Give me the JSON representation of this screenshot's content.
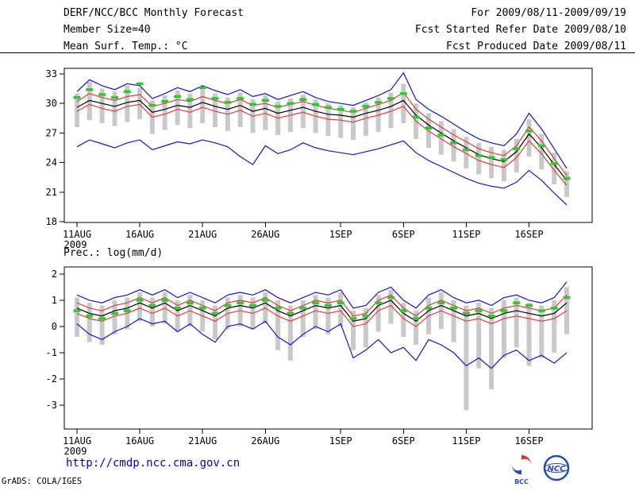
{
  "header": {
    "title": "DERF/NCC/BCC Monthly Forecast",
    "member_size": "Member Size=40",
    "for_range": "For 2009/08/11-2009/09/19",
    "fcst_started": "Fcst Started Refer Date 2009/08/10",
    "fcst_produced": "Fcst Produced Date 2009/08/11"
  },
  "footer": {
    "url": "http://cmdp.ncc.cma.gov.cn",
    "grads_credit": "GrADS: COLA/IGES",
    "logos": [
      {
        "name": "bcc-logo",
        "label": "BCC"
      },
      {
        "name": "ncc-logo",
        "label": "NCC"
      }
    ]
  },
  "colors": {
    "blue": "#1414c8",
    "red": "#e03c3c",
    "green": "#30c830",
    "gray": "#c9c9c9",
    "black": "#000000",
    "url_blue": "#0000cc",
    "logo_blue": "#2b4bb4",
    "logo_red": "#d43a3a"
  },
  "chart_data": [
    {
      "type": "line",
      "title": "Mean Surf. Temp.: °C",
      "ylabel": "°C",
      "x_dates": [
        "11AUG",
        "12AUG",
        "13AUG",
        "14AUG",
        "15AUG",
        "16AUG",
        "17AUG",
        "18AUG",
        "19AUG",
        "20AUG",
        "21AUG",
        "22AUG",
        "23AUG",
        "24AUG",
        "25AUG",
        "26AUG",
        "27AUG",
        "28AUG",
        "29AUG",
        "30AUG",
        "31AUG",
        "1SEP",
        "2SEP",
        "3SEP",
        "4SEP",
        "5SEP",
        "6SEP",
        "7SEP",
        "8SEP",
        "9SEP",
        "10SEP",
        "11SEP",
        "12SEP",
        "13SEP",
        "14SEP",
        "15SEP",
        "16SEP",
        "17SEP",
        "18SEP",
        "19SEP"
      ],
      "x_tick_indices": [
        0,
        5,
        10,
        15,
        21,
        26,
        31,
        36
      ],
      "x_tick_labels": [
        "11AUG",
        "16AUG",
        "21AUG",
        "26AUG",
        "1SEP",
        "6SEP",
        "11SEP",
        "16SEP"
      ],
      "year_label": "2009",
      "y_ticks": [
        18,
        21,
        24,
        27,
        30,
        33
      ],
      "ylim": [
        17.92,
        33.56
      ],
      "legend_position": "none",
      "grid": false,
      "series": [
        {
          "name": "ensemble-max",
          "color": "blue",
          "style": "line",
          "values": [
            31.2,
            32.4,
            31.8,
            31.4,
            32.0,
            31.8,
            30.5,
            31.0,
            31.6,
            31.2,
            31.8,
            31.3,
            30.9,
            31.4,
            30.7,
            31.0,
            30.4,
            30.8,
            31.2,
            30.6,
            30.2,
            30.0,
            29.8,
            30.3,
            30.8,
            31.4,
            33.1,
            30.4,
            29.4,
            28.7,
            27.9,
            27.1,
            26.4,
            26.0,
            25.7,
            26.9,
            29.0,
            27.4,
            25.4,
            23.4
          ]
        },
        {
          "name": "upper-quartile",
          "color": "red",
          "style": "line",
          "values": [
            30.2,
            31.0,
            30.6,
            30.3,
            30.7,
            30.9,
            29.7,
            30.0,
            30.4,
            30.2,
            30.7,
            30.3,
            30.0,
            30.4,
            29.8,
            30.0,
            29.6,
            29.9,
            30.2,
            29.8,
            29.5,
            29.3,
            29.1,
            29.5,
            29.9,
            30.3,
            31.1,
            29.4,
            28.4,
            27.6,
            26.8,
            26.1,
            25.4,
            25.0,
            24.7,
            25.7,
            27.6,
            26.2,
            24.4,
            22.7
          ]
        },
        {
          "name": "ensemble-mean",
          "color": "black",
          "style": "line",
          "values": [
            29.6,
            30.3,
            30.0,
            29.7,
            30.1,
            30.3,
            29.1,
            29.4,
            29.8,
            29.6,
            30.1,
            29.7,
            29.4,
            29.8,
            29.2,
            29.5,
            29.0,
            29.3,
            29.6,
            29.2,
            28.9,
            28.8,
            28.6,
            29.0,
            29.3,
            29.7,
            30.3,
            28.8,
            27.8,
            27.0,
            26.2,
            25.5,
            24.8,
            24.4,
            24.1,
            25.1,
            26.9,
            25.5,
            23.8,
            22.2
          ]
        },
        {
          "name": "lower-quartile",
          "color": "red",
          "style": "line",
          "values": [
            29.2,
            29.9,
            29.5,
            29.2,
            29.7,
            29.9,
            28.6,
            28.9,
            29.4,
            29.1,
            29.6,
            29.2,
            28.9,
            29.3,
            28.7,
            29.0,
            28.5,
            28.8,
            29.1,
            28.7,
            28.4,
            28.3,
            28.1,
            28.5,
            28.8,
            29.2,
            29.7,
            28.2,
            27.2,
            26.4,
            25.6,
            24.9,
            24.2,
            23.8,
            23.5,
            24.5,
            26.2,
            24.9,
            23.2,
            21.7
          ]
        },
        {
          "name": "ensemble-min",
          "color": "blue",
          "style": "line",
          "values": [
            25.6,
            26.3,
            25.9,
            25.5,
            26.0,
            26.3,
            25.3,
            25.7,
            26.1,
            25.9,
            26.3,
            26.0,
            25.6,
            24.6,
            23.8,
            25.7,
            24.9,
            25.3,
            26.0,
            25.5,
            25.2,
            25.0,
            24.8,
            25.1,
            25.4,
            25.8,
            26.2,
            25.0,
            24.2,
            23.6,
            23.0,
            22.4,
            21.9,
            21.6,
            21.4,
            22.0,
            23.2,
            22.2,
            20.9,
            19.7
          ]
        },
        {
          "name": "control-daily",
          "color": "green",
          "style": "dashes",
          "values": [
            30.6,
            31.4,
            30.9,
            30.6,
            31.2,
            32.0,
            29.8,
            30.2,
            30.7,
            30.4,
            31.6,
            30.5,
            30.1,
            30.5,
            29.9,
            30.3,
            29.7,
            30.0,
            30.4,
            29.9,
            29.6,
            29.4,
            29.2,
            29.7,
            30.1,
            30.5,
            31.0,
            28.6,
            27.5,
            26.8,
            26.0,
            25.3,
            24.7,
            24.5,
            24.3,
            25.4,
            27.2,
            25.7,
            23.9,
            22.4
          ]
        }
      ],
      "bars": {
        "name": "ensemble-spread",
        "color": "gray",
        "top": [
          31.0,
          32.2,
          31.5,
          31.2,
          31.8,
          31.6,
          30.3,
          30.8,
          31.3,
          31.0,
          31.5,
          31.0,
          30.6,
          31.1,
          30.4,
          30.8,
          30.2,
          30.5,
          30.9,
          30.4,
          30.0,
          29.8,
          29.6,
          30.1,
          30.6,
          31.1,
          32.0,
          30.0,
          29.0,
          28.2,
          27.4,
          26.6,
          26.0,
          25.6,
          25.3,
          26.4,
          28.4,
          26.9,
          25.0,
          23.1
        ],
        "bottom": [
          27.6,
          28.3,
          28.0,
          27.7,
          28.1,
          28.4,
          26.9,
          27.3,
          27.8,
          27.5,
          28.0,
          27.6,
          27.2,
          27.6,
          27.0,
          27.3,
          26.8,
          27.1,
          27.5,
          27.0,
          26.7,
          26.5,
          26.3,
          26.7,
          27.1,
          27.5,
          28.0,
          26.4,
          25.5,
          24.8,
          24.1,
          23.4,
          22.8,
          22.4,
          22.1,
          23.0,
          24.6,
          23.3,
          21.8,
          20.5
        ]
      }
    },
    {
      "type": "line",
      "title": "Prec.: log(mm/d)",
      "ylabel": "log(mm/d)",
      "x_dates": [
        "11AUG",
        "12AUG",
        "13AUG",
        "14AUG",
        "15AUG",
        "16AUG",
        "17AUG",
        "18AUG",
        "19AUG",
        "20AUG",
        "21AUG",
        "22AUG",
        "23AUG",
        "24AUG",
        "25AUG",
        "26AUG",
        "27AUG",
        "28AUG",
        "29AUG",
        "30AUG",
        "31AUG",
        "1SEP",
        "2SEP",
        "3SEP",
        "4SEP",
        "5SEP",
        "6SEP",
        "7SEP",
        "8SEP",
        "9SEP",
        "10SEP",
        "11SEP",
        "12SEP",
        "13SEP",
        "14SEP",
        "15SEP",
        "16SEP",
        "17SEP",
        "18SEP",
        "19SEP"
      ],
      "x_tick_indices": [
        0,
        5,
        10,
        15,
        21,
        26,
        31,
        36
      ],
      "x_tick_labels": [
        "11AUG",
        "16AUG",
        "21AUG",
        "26AUG",
        "1SEP",
        "6SEP",
        "11SEP",
        "16SEP"
      ],
      "year_label": "2009",
      "y_ticks": [
        -3,
        -2,
        -1,
        0,
        1,
        2
      ],
      "ylim": [
        -3.91,
        2.27
      ],
      "legend_position": "none",
      "grid": false,
      "series": [
        {
          "name": "ensemble-max",
          "color": "blue",
          "style": "line",
          "values": [
            1.2,
            1.0,
            0.9,
            1.1,
            1.2,
            1.4,
            1.2,
            1.4,
            1.1,
            1.3,
            1.1,
            0.9,
            1.2,
            1.3,
            1.2,
            1.4,
            1.1,
            0.9,
            1.1,
            1.3,
            1.2,
            1.4,
            0.7,
            0.8,
            1.3,
            1.5,
            1.0,
            0.7,
            1.2,
            1.4,
            1.1,
            0.9,
            1.0,
            0.8,
            1.1,
            1.2,
            1.0,
            0.9,
            1.1,
            1.7
          ]
        },
        {
          "name": "upper-quartile",
          "color": "red",
          "style": "line",
          "values": [
            0.9,
            0.7,
            0.6,
            0.8,
            0.9,
            1.1,
            0.9,
            1.1,
            0.8,
            1.0,
            0.8,
            0.6,
            0.9,
            1.0,
            0.9,
            1.1,
            0.8,
            0.6,
            0.8,
            1.0,
            0.9,
            1.0,
            0.4,
            0.5,
            1.0,
            1.2,
            0.7,
            0.4,
            0.8,
            1.0,
            0.8,
            0.6,
            0.7,
            0.5,
            0.7,
            0.8,
            0.7,
            0.6,
            0.7,
            1.2
          ]
        },
        {
          "name": "ensemble-mean",
          "color": "black",
          "style": "line",
          "values": [
            0.7,
            0.5,
            0.4,
            0.6,
            0.7,
            0.9,
            0.7,
            0.9,
            0.6,
            0.8,
            0.6,
            0.4,
            0.7,
            0.8,
            0.7,
            0.9,
            0.6,
            0.4,
            0.6,
            0.8,
            0.7,
            0.8,
            0.2,
            0.3,
            0.8,
            1.0,
            0.5,
            0.2,
            0.6,
            0.8,
            0.6,
            0.4,
            0.5,
            0.3,
            0.5,
            0.6,
            0.5,
            0.4,
            0.5,
            0.9
          ]
        },
        {
          "name": "lower-quartile",
          "color": "red",
          "style": "line",
          "values": [
            0.5,
            0.3,
            0.2,
            0.4,
            0.5,
            0.7,
            0.5,
            0.7,
            0.4,
            0.6,
            0.4,
            0.2,
            0.5,
            0.6,
            0.5,
            0.7,
            0.4,
            0.2,
            0.4,
            0.6,
            0.5,
            0.6,
            0.0,
            0.1,
            0.6,
            0.8,
            0.3,
            0.0,
            0.4,
            0.6,
            0.4,
            0.2,
            0.3,
            0.1,
            0.3,
            0.4,
            0.3,
            0.2,
            0.3,
            0.6
          ]
        },
        {
          "name": "ensemble-min",
          "color": "blue",
          "style": "line",
          "values": [
            0.1,
            -0.3,
            -0.5,
            -0.2,
            0.0,
            0.3,
            0.1,
            0.2,
            -0.2,
            0.1,
            -0.3,
            -0.6,
            0.0,
            0.1,
            -0.1,
            0.2,
            -0.4,
            -0.7,
            -0.3,
            0.0,
            -0.2,
            0.1,
            -1.2,
            -0.9,
            -0.5,
            -1.0,
            -0.8,
            -1.3,
            -0.5,
            -0.7,
            -1.0,
            -1.5,
            -1.2,
            -1.6,
            -1.1,
            -0.9,
            -1.3,
            -1.1,
            -1.4,
            -1.0
          ]
        },
        {
          "name": "control-daily",
          "color": "green",
          "style": "dashes",
          "values": [
            0.6,
            0.4,
            0.3,
            0.5,
            0.6,
            1.0,
            0.8,
            1.0,
            0.7,
            0.9,
            0.7,
            0.5,
            0.8,
            0.9,
            0.8,
            1.0,
            0.7,
            0.5,
            0.7,
            0.9,
            0.8,
            0.9,
            0.3,
            0.4,
            0.9,
            1.1,
            0.6,
            0.3,
            0.7,
            0.9,
            0.7,
            0.5,
            0.6,
            0.4,
            0.6,
            0.9,
            0.8,
            0.6,
            0.7,
            1.1
          ]
        }
      ],
      "bars": {
        "name": "ensemble-spread",
        "color": "gray",
        "top": [
          1.1,
          0.9,
          0.8,
          1.0,
          1.1,
          1.3,
          1.1,
          1.3,
          1.0,
          1.2,
          1.0,
          0.8,
          1.1,
          1.2,
          1.1,
          1.3,
          1.0,
          0.8,
          1.0,
          1.2,
          1.1,
          1.3,
          0.6,
          0.7,
          1.2,
          1.4,
          0.9,
          0.6,
          1.1,
          1.3,
          1.0,
          0.8,
          0.9,
          0.7,
          1.0,
          1.1,
          0.9,
          0.8,
          1.0,
          1.5
        ],
        "bottom": [
          -0.4,
          -0.6,
          -0.7,
          -0.3,
          -0.1,
          0.2,
          0.0,
          0.1,
          -0.2,
          0.0,
          -0.2,
          -0.5,
          -0.1,
          0.0,
          -0.1,
          0.1,
          -0.9,
          -1.3,
          -0.4,
          -0.1,
          -0.3,
          0.0,
          -0.9,
          -0.8,
          -0.2,
          0.1,
          -0.4,
          -0.7,
          -0.3,
          -0.1,
          -0.6,
          -3.2,
          -1.6,
          -2.4,
          -1.2,
          -0.8,
          -1.5,
          -1.2,
          -1.0,
          -0.3
        ]
      }
    }
  ]
}
